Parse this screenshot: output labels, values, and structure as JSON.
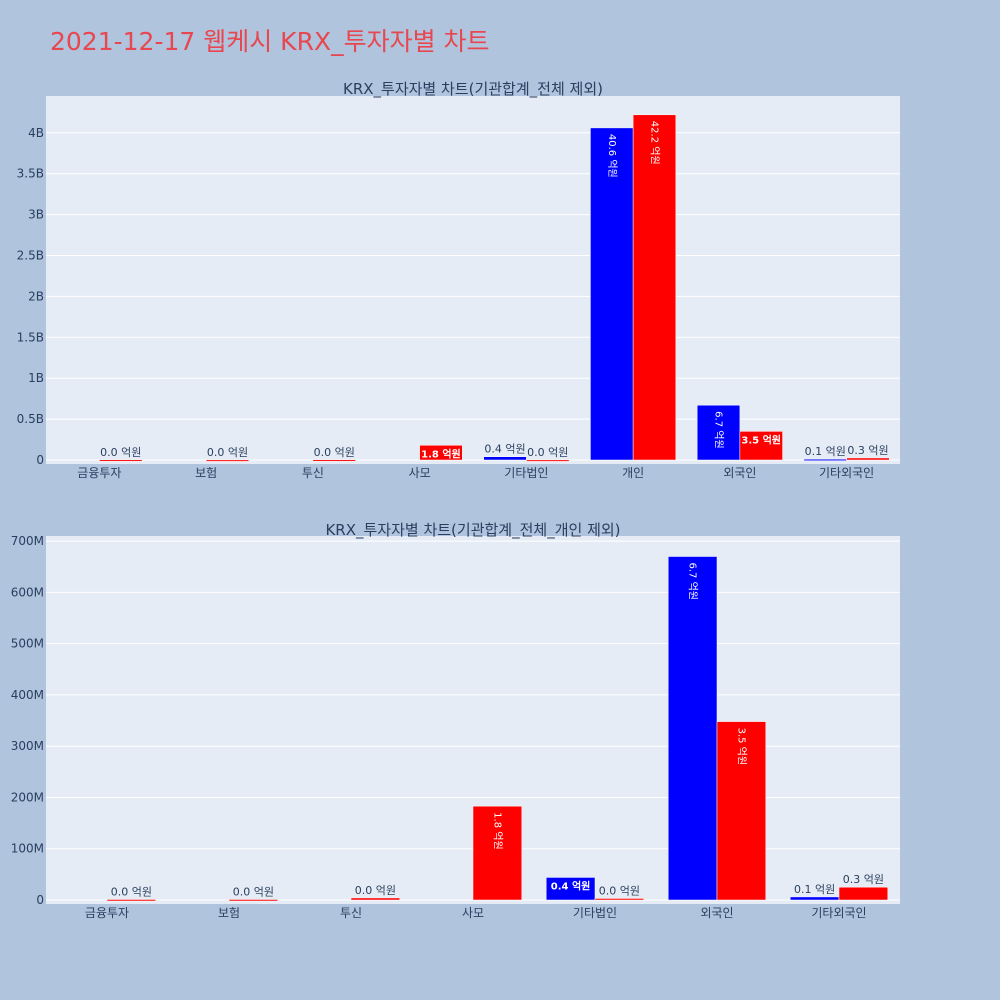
{
  "page": {
    "title": "2021-12-17 웹케시 KRX_투자자별 차트"
  },
  "colors": {
    "buy": "#0000ff",
    "sell": "#ff0000",
    "plot_bg": "#e5ecf6",
    "page_bg": "#b0c4de",
    "title": "#e8474f"
  },
  "chart_data": [
    {
      "type": "bar",
      "title": "KRX_투자자별 차트(기관합계_전체 제외)",
      "categories": [
        "금융투자",
        "보험",
        "투신",
        "사모",
        "기타법인",
        "개인",
        "외국인",
        "기타외국인"
      ],
      "ylim": [
        0,
        4450000000
      ],
      "yticks": [
        0,
        500000000,
        1000000000,
        1500000000,
        2000000000,
        2500000000,
        3000000000,
        3500000000,
        4000000000
      ],
      "ytick_labels": [
        "0",
        "0.5B",
        "1B",
        "1.5B",
        "2B",
        "2.5B",
        "3B",
        "3.5B",
        "4B"
      ],
      "grid": true,
      "series": [
        {
          "color": "#0000ff",
          "values": [
            0,
            0,
            0,
            0,
            40000000,
            4060000000,
            670000000,
            10000000
          ],
          "labels": [
            "",
            "",
            "",
            "",
            "0.4 억원",
            "40.6 억원",
            "6.7 억원",
            "0.1 억원"
          ]
        },
        {
          "color": "#ff0000",
          "values": [
            2000000,
            1000000,
            2000000,
            180000000,
            1000000,
            4220000000,
            350000000,
            25000000
          ],
          "labels": [
            "0.0 억원",
            "0.0 억원",
            "0.0 억원",
            "1.8 억원",
            "0.0 억원",
            "42.2 억원",
            "3.5 억원",
            "0.3 억원"
          ]
        }
      ]
    },
    {
      "type": "bar",
      "title": "KRX_투자자별 차트(기관합계_전체_개인 제외)",
      "categories": [
        "금융투자",
        "보험",
        "투신",
        "사모",
        "기타법인",
        "외국인",
        "기타외국인"
      ],
      "ylim": [
        0,
        710000000
      ],
      "yticks": [
        0,
        100000000,
        200000000,
        300000000,
        400000000,
        500000000,
        600000000,
        700000000
      ],
      "ytick_labels": [
        "0",
        "100M",
        "200M",
        "300M",
        "400M",
        "500M",
        "600M",
        "700M"
      ],
      "grid": true,
      "series": [
        {
          "color": "#0000ff",
          "values": [
            0,
            0,
            0,
            0,
            44000000,
            670000000,
            6000000
          ],
          "labels": [
            "",
            "",
            "",
            "",
            "0.4 억원",
            "6.7 억원",
            "0.1 억원"
          ]
        },
        {
          "color": "#ff0000",
          "values": [
            1000000,
            1000000,
            4000000,
            183000000,
            3000000,
            348000000,
            25000000
          ],
          "labels": [
            "0.0 억원",
            "0.0 억원",
            "0.0 억원",
            "1.8 억원",
            "0.0 억원",
            "3.5 억원",
            "0.3 억원"
          ]
        }
      ]
    }
  ]
}
